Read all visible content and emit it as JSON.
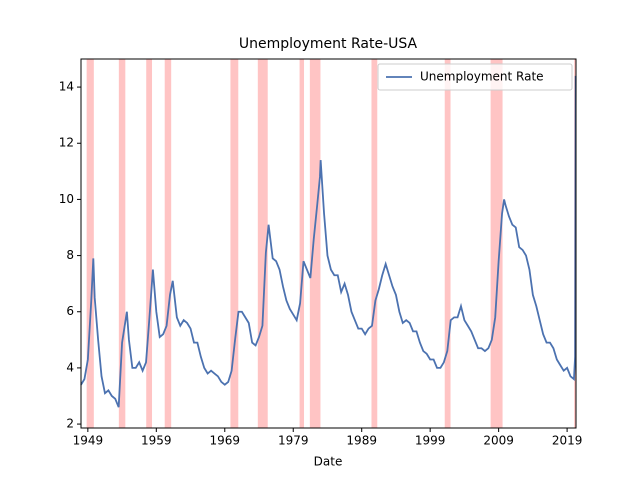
{
  "chart_data": {
    "type": "line",
    "title": "Unemployment Rate-USA",
    "x_label": "Date",
    "x": [
      1948.0,
      1948.5,
      1949.0,
      1949.5,
      1949.8,
      1950.0,
      1950.5,
      1951.0,
      1951.5,
      1952.0,
      1952.5,
      1953.0,
      1953.5,
      1954.0,
      1954.7,
      1955.0,
      1955.5,
      1956.0,
      1956.5,
      1957.0,
      1957.5,
      1958.0,
      1958.5,
      1959.0,
      1959.5,
      1960.0,
      1960.5,
      1961.0,
      1961.4,
      1962.0,
      1962.5,
      1963.0,
      1963.5,
      1964.0,
      1964.5,
      1965.0,
      1965.5,
      1966.0,
      1966.5,
      1967.0,
      1967.5,
      1968.0,
      1968.5,
      1969.0,
      1969.5,
      1970.0,
      1970.5,
      1971.0,
      1971.5,
      1972.0,
      1972.5,
      1973.0,
      1973.5,
      1974.0,
      1974.5,
      1975.0,
      1975.4,
      1976.0,
      1976.5,
      1977.0,
      1977.5,
      1978.0,
      1978.5,
      1979.0,
      1979.5,
      1980.0,
      1980.5,
      1981.0,
      1981.5,
      1982.0,
      1982.5,
      1982.9,
      1983.0,
      1983.5,
      1984.0,
      1984.5,
      1985.0,
      1985.5,
      1986.0,
      1986.5,
      1987.0,
      1987.5,
      1988.0,
      1988.5,
      1989.0,
      1989.5,
      1990.0,
      1990.5,
      1991.0,
      1991.5,
      1992.0,
      1992.5,
      1993.0,
      1993.5,
      1994.0,
      1994.5,
      1995.0,
      1995.5,
      1996.0,
      1996.5,
      1997.0,
      1997.5,
      1998.0,
      1998.5,
      1999.0,
      1999.5,
      2000.0,
      2000.5,
      2001.0,
      2001.5,
      2002.0,
      2002.5,
      2003.0,
      2003.5,
      2004.0,
      2004.5,
      2005.0,
      2005.5,
      2006.0,
      2006.5,
      2007.0,
      2007.5,
      2008.0,
      2008.5,
      2009.0,
      2009.5,
      2009.8,
      2010.0,
      2010.5,
      2011.0,
      2011.5,
      2012.0,
      2012.5,
      2013.0,
      2013.5,
      2014.0,
      2014.5,
      2015.0,
      2015.5,
      2016.0,
      2016.5,
      2017.0,
      2017.5,
      2018.0,
      2018.5,
      2019.0,
      2019.5,
      2020.0,
      2020.17,
      2020.25
    ],
    "series": [
      {
        "name": "Unemployment Rate",
        "color": "#4c72b0",
        "values": [
          3.4,
          3.6,
          4.3,
          6.4,
          7.9,
          6.5,
          5.0,
          3.7,
          3.1,
          3.2,
          3.0,
          2.9,
          2.6,
          4.9,
          6.0,
          5.0,
          4.0,
          4.0,
          4.2,
          3.9,
          4.2,
          5.8,
          7.5,
          6.0,
          5.1,
          5.2,
          5.5,
          6.6,
          7.1,
          5.8,
          5.5,
          5.7,
          5.6,
          5.4,
          4.9,
          4.9,
          4.4,
          4.0,
          3.8,
          3.9,
          3.8,
          3.7,
          3.5,
          3.4,
          3.5,
          3.9,
          5.0,
          6.0,
          6.0,
          5.8,
          5.6,
          4.9,
          4.8,
          5.1,
          5.5,
          8.1,
          9.1,
          7.9,
          7.8,
          7.5,
          6.9,
          6.4,
          6.1,
          5.9,
          5.7,
          6.3,
          7.8,
          7.5,
          7.2,
          8.6,
          9.8,
          10.8,
          11.4,
          9.5,
          8.0,
          7.5,
          7.3,
          7.3,
          6.7,
          7.0,
          6.6,
          6.0,
          5.7,
          5.4,
          5.4,
          5.2,
          5.4,
          5.5,
          6.4,
          6.8,
          7.3,
          7.7,
          7.3,
          6.9,
          6.6,
          6.0,
          5.6,
          5.7,
          5.6,
          5.3,
          5.3,
          4.9,
          4.6,
          4.5,
          4.3,
          4.3,
          4.0,
          4.0,
          4.2,
          4.6,
          5.7,
          5.8,
          5.8,
          6.2,
          5.7,
          5.5,
          5.3,
          5.0,
          4.7,
          4.7,
          4.6,
          4.7,
          5.0,
          5.8,
          7.8,
          9.5,
          10.0,
          9.8,
          9.4,
          9.1,
          9.0,
          8.3,
          8.2,
          8.0,
          7.5,
          6.6,
          6.2,
          5.7,
          5.2,
          4.9,
          4.9,
          4.7,
          4.3,
          4.1,
          3.9,
          4.0,
          3.7,
          3.6,
          4.4,
          14.4
        ]
      }
    ],
    "recessions": [
      [
        1948.9,
        1949.8
      ],
      [
        1953.6,
        1954.4
      ],
      [
        1957.6,
        1958.3
      ],
      [
        1960.3,
        1961.1
      ],
      [
        1969.9,
        1970.9
      ],
      [
        1973.9,
        1975.2
      ],
      [
        1980.0,
        1980.5
      ],
      [
        1981.5,
        1982.9
      ],
      [
        1990.5,
        1991.2
      ],
      [
        2001.2,
        2001.9
      ],
      [
        2007.9,
        2009.5
      ],
      [
        2020.1,
        2020.3
      ]
    ],
    "recession_color": "#ffc4c4",
    "xlim": [
      1948.0,
      2020.3
    ],
    "xticks": [
      1949,
      1959,
      1969,
      1979,
      1989,
      1999,
      2009,
      2019
    ],
    "ylim": [
      1.86,
      15
    ],
    "yticks": [
      2,
      4,
      6,
      8,
      10,
      12,
      14
    ],
    "legend": "upper right"
  }
}
